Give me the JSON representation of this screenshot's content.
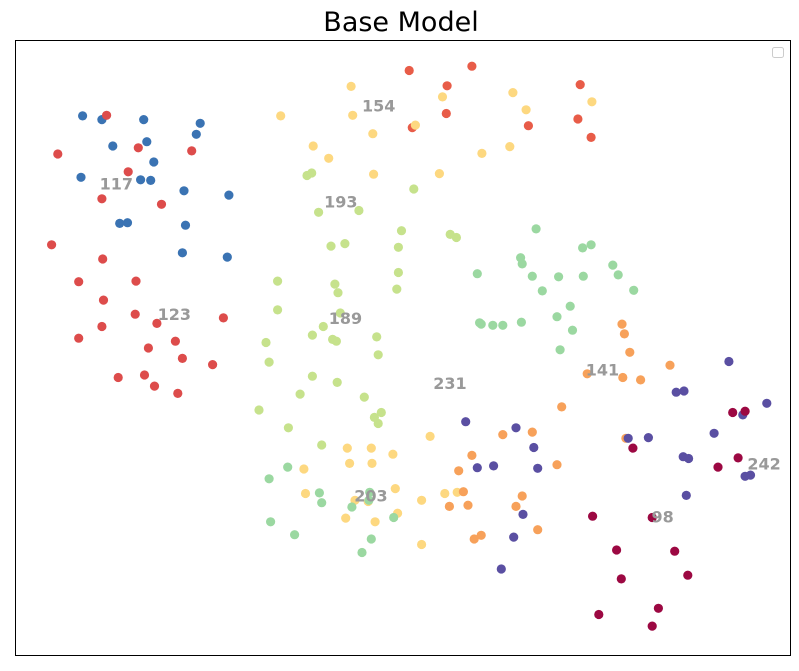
{
  "chart_data": {
    "type": "scatter",
    "title": "Base Model",
    "xlabel": "",
    "ylabel": "",
    "xlim": [
      0,
      100
    ],
    "ylim": [
      0,
      100
    ],
    "grid": false,
    "axes_ticks": false,
    "legend_placement": "top-right",
    "legend_entries": [],
    "colors": {
      "c117": "#3a73b3",
      "c123": "#dd4c4b",
      "c154": "#e85c48",
      "cYellow": "#fdd880",
      "c193": "#c6e28c",
      "c203": "#9bd8a1",
      "c141": "#f7a15a",
      "c242": "#5a4fa2",
      "c98": "#9c0842"
    },
    "series": [
      {
        "color_key": "c117",
        "points": [
          [
            8.6,
            87.8
          ],
          [
            11.1,
            87.2
          ],
          [
            16.5,
            87.2
          ],
          [
            16.9,
            83.6
          ],
          [
            17.8,
            80.3
          ],
          [
            23.3,
            84.8
          ],
          [
            23.8,
            86.6
          ],
          [
            12.5,
            82.9
          ],
          [
            8.4,
            77.8
          ],
          [
            16.1,
            77.4
          ],
          [
            17.4,
            77.3
          ],
          [
            21.7,
            75.6
          ],
          [
            27.5,
            74.9
          ],
          [
            13.4,
            70.3
          ],
          [
            14.4,
            70.4
          ],
          [
            21.9,
            70.0
          ],
          [
            21.5,
            65.5
          ],
          [
            27.3,
            64.8
          ]
        ]
      },
      {
        "color_key": "c123",
        "points": [
          [
            11.7,
            87.9
          ],
          [
            15.8,
            82.6
          ],
          [
            22.7,
            82.1
          ],
          [
            5.4,
            81.6
          ],
          [
            14.5,
            78.7
          ],
          [
            11.1,
            74.3
          ],
          [
            18.8,
            73.4
          ],
          [
            4.6,
            66.8
          ],
          [
            11.2,
            64.5
          ],
          [
            8.1,
            60.8
          ],
          [
            15.5,
            60.9
          ],
          [
            11.3,
            57.8
          ],
          [
            15.4,
            55.5
          ],
          [
            26.8,
            54.9
          ],
          [
            18.2,
            54.0
          ],
          [
            11.1,
            53.5
          ],
          [
            8.1,
            51.6
          ],
          [
            20.6,
            51.1
          ],
          [
            17.1,
            50.0
          ],
          [
            21.5,
            48.3
          ],
          [
            25.4,
            47.3
          ],
          [
            13.2,
            45.2
          ],
          [
            16.6,
            45.6
          ],
          [
            17.9,
            43.8
          ],
          [
            20.9,
            42.6
          ]
        ]
      },
      {
        "color_key": "c154",
        "points": [
          [
            50.8,
            95.2
          ],
          [
            58.9,
            95.9
          ],
          [
            55.7,
            92.7
          ],
          [
            72.9,
            92.9
          ],
          [
            55.6,
            88.2
          ],
          [
            72.6,
            87.3
          ],
          [
            66.2,
            86.2
          ],
          [
            51.2,
            85.9
          ],
          [
            74.3,
            84.3
          ]
        ]
      },
      {
        "color_key": "cYellow",
        "points": [
          [
            43.3,
            92.6
          ],
          [
            55.1,
            90.9
          ],
          [
            64.2,
            91.6
          ],
          [
            74.4,
            90.1
          ],
          [
            34.2,
            87.8
          ],
          [
            43.5,
            87.9
          ],
          [
            65.9,
            88.8
          ],
          [
            46.1,
            84.9
          ],
          [
            51.6,
            86.3
          ],
          [
            38.4,
            82.9
          ],
          [
            40.4,
            80.9
          ],
          [
            63.8,
            82.8
          ],
          [
            46.2,
            78.3
          ],
          [
            60.2,
            81.7
          ],
          [
            54.7,
            78.4
          ],
          [
            53.5,
            35.6
          ],
          [
            42.8,
            33.7
          ],
          [
            45.9,
            33.7
          ],
          [
            48.7,
            32.7
          ],
          [
            43.1,
            31.2
          ],
          [
            46.0,
            31.2
          ],
          [
            37.2,
            30.3
          ],
          [
            49.0,
            27.1
          ],
          [
            37.4,
            26.3
          ],
          [
            55.4,
            26.3
          ],
          [
            43.8,
            25.2
          ],
          [
            45.5,
            25.0
          ],
          [
            49.3,
            23.1
          ],
          [
            52.4,
            25.2
          ],
          [
            42.6,
            22.3
          ],
          [
            46.4,
            21.7
          ],
          [
            57.0,
            26.5
          ],
          [
            52.4,
            18.0
          ]
        ]
      },
      {
        "color_key": "c193",
        "points": [
          [
            37.6,
            78.1
          ],
          [
            38.2,
            78.5
          ],
          [
            51.4,
            75.9
          ],
          [
            39.1,
            72.1
          ],
          [
            44.3,
            72.4
          ],
          [
            49.8,
            69.1
          ],
          [
            56.1,
            68.5
          ],
          [
            40.7,
            66.6
          ],
          [
            42.5,
            67.0
          ],
          [
            49.4,
            66.4
          ],
          [
            56.9,
            68.0
          ],
          [
            49.4,
            62.3
          ],
          [
            33.8,
            60.9
          ],
          [
            41.2,
            60.4
          ],
          [
            49.2,
            59.6
          ],
          [
            41.6,
            59.0
          ],
          [
            33.8,
            56.2
          ],
          [
            41.9,
            55.7
          ],
          [
            39.7,
            53.5
          ],
          [
            38.3,
            52.1
          ],
          [
            40.9,
            51.4
          ],
          [
            46.6,
            51.8
          ],
          [
            41.4,
            51.1
          ],
          [
            32.3,
            50.9
          ],
          [
            46.8,
            48.9
          ],
          [
            32.7,
            47.7
          ],
          [
            38.3,
            45.4
          ],
          [
            41.5,
            44.4
          ],
          [
            36.7,
            42.5
          ],
          [
            45.0,
            42.0
          ],
          [
            31.4,
            39.9
          ],
          [
            46.3,
            38.7
          ],
          [
            35.2,
            37.0
          ],
          [
            39.5,
            34.2
          ],
          [
            46.8,
            37.7
          ],
          [
            47.2,
            39.5
          ]
        ]
      },
      {
        "color_key": "c203",
        "points": [
          [
            67.2,
            69.4
          ],
          [
            73.2,
            66.3
          ],
          [
            74.3,
            66.8
          ],
          [
            65.2,
            64.7
          ],
          [
            65.4,
            63.7
          ],
          [
            66.7,
            61.7
          ],
          [
            59.6,
            62.1
          ],
          [
            70.1,
            61.6
          ],
          [
            73.3,
            61.7
          ],
          [
            77.1,
            63.5
          ],
          [
            77.8,
            61.9
          ],
          [
            79.8,
            59.4
          ],
          [
            68.0,
            59.3
          ],
          [
            71.6,
            56.8
          ],
          [
            59.9,
            54.1
          ],
          [
            60.1,
            53.9
          ],
          [
            61.6,
            53.7
          ],
          [
            62.9,
            53.7
          ],
          [
            65.3,
            54.2
          ],
          [
            69.9,
            55.1
          ],
          [
            71.9,
            52.9
          ],
          [
            70.3,
            49.7
          ],
          [
            35.1,
            30.6
          ],
          [
            32.7,
            28.7
          ],
          [
            39.2,
            26.4
          ],
          [
            45.7,
            26.5
          ],
          [
            39.5,
            24.8
          ],
          [
            45.6,
            25.2
          ],
          [
            43.4,
            24.1
          ],
          [
            48.8,
            22.4
          ],
          [
            32.9,
            21.7
          ],
          [
            36.0,
            19.6
          ],
          [
            45.9,
            18.9
          ],
          [
            44.7,
            16.7
          ]
        ]
      },
      {
        "color_key": "c141",
        "points": [
          [
            78.3,
            53.9
          ],
          [
            78.6,
            52.3
          ],
          [
            79.3,
            49.3
          ],
          [
            84.5,
            47.2
          ],
          [
            73.8,
            45.8
          ],
          [
            78.4,
            45.2
          ],
          [
            80.7,
            44.8
          ],
          [
            70.5,
            40.4
          ],
          [
            66.7,
            36.3
          ],
          [
            78.8,
            35.3
          ],
          [
            62.9,
            35.9
          ],
          [
            58.9,
            32.5
          ],
          [
            69.9,
            31.0
          ],
          [
            57.2,
            30.0
          ],
          [
            57.8,
            26.6
          ],
          [
            65.4,
            25.9
          ],
          [
            64.6,
            24.2
          ],
          [
            56.0,
            24.2
          ],
          [
            58.4,
            24.4
          ],
          [
            67.4,
            20.4
          ],
          [
            60.1,
            19.5
          ],
          [
            59.2,
            18.9
          ]
        ]
      },
      {
        "color_key": "c242",
        "points": [
          [
            92.1,
            47.8
          ],
          [
            85.3,
            42.8
          ],
          [
            86.3,
            43.0
          ],
          [
            97.0,
            41.0
          ],
          [
            93.9,
            39.1
          ],
          [
            90.2,
            36.1
          ],
          [
            58.1,
            38.0
          ],
          [
            64.6,
            37.0
          ],
          [
            81.7,
            35.4
          ],
          [
            79.1,
            35.3
          ],
          [
            66.9,
            33.8
          ],
          [
            86.2,
            32.3
          ],
          [
            86.9,
            32.0
          ],
          [
            59.6,
            30.5
          ],
          [
            61.7,
            30.8
          ],
          [
            67.4,
            30.4
          ],
          [
            94.9,
            29.3
          ],
          [
            94.2,
            29.1
          ],
          [
            86.6,
            26.0
          ],
          [
            65.5,
            22.9
          ],
          [
            64.3,
            19.2
          ],
          [
            62.7,
            14.0
          ]
        ]
      },
      {
        "color_key": "c98",
        "points": [
          [
            92.6,
            39.5
          ],
          [
            94.2,
            39.7
          ],
          [
            79.7,
            33.7
          ],
          [
            93.3,
            32.1
          ],
          [
            90.7,
            30.6
          ],
          [
            74.5,
            22.6
          ],
          [
            82.2,
            22.4
          ],
          [
            77.6,
            17.1
          ],
          [
            85.1,
            16.9
          ],
          [
            86.8,
            13.0
          ],
          [
            78.2,
            12.4
          ],
          [
            83.0,
            7.6
          ],
          [
            75.3,
            6.6
          ],
          [
            82.2,
            4.7
          ]
        ]
      }
    ],
    "annotations": [
      {
        "text": "117",
        "x": 10.8,
        "y": 75.8
      },
      {
        "text": "154",
        "x": 44.7,
        "y": 88.5
      },
      {
        "text": "193",
        "x": 39.8,
        "y": 72.9
      },
      {
        "text": "123",
        "x": 18.3,
        "y": 54.6
      },
      {
        "text": "189",
        "x": 40.4,
        "y": 53.9
      },
      {
        "text": "231",
        "x": 53.9,
        "y": 43.3
      },
      {
        "text": "141",
        "x": 73.6,
        "y": 45.5
      },
      {
        "text": "242",
        "x": 94.5,
        "y": 30.2
      },
      {
        "text": "203",
        "x": 43.7,
        "y": 25.0
      },
      {
        "text": "98",
        "x": 82.1,
        "y": 21.6
      }
    ]
  }
}
